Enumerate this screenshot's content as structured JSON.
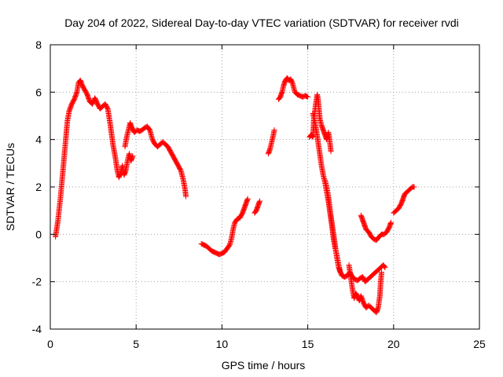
{
  "chart_data": {
    "type": "scatter",
    "title": "Day 204 of 2022, Sidereal Day-to-day VTEC variation (SDTVAR) for receiver rvdi",
    "xlabel": "GPS time / hours",
    "ylabel": "SDTVAR / TECUs",
    "xlim": [
      0,
      25
    ],
    "ylim": [
      -4,
      8
    ],
    "xticks": [
      "0",
      "5",
      "10",
      "15",
      "20",
      "25"
    ],
    "yticks": [
      "-4",
      "-2",
      "0",
      "2",
      "4",
      "6",
      "8"
    ],
    "grid": true,
    "marker": "+",
    "series": [
      {
        "name": "SDTVAR",
        "color": "#ff0000",
        "segments": [
          [
            [
              0.3,
              -0.1
            ],
            [
              0.45,
              0.6
            ],
            [
              0.6,
              1.6
            ],
            [
              0.75,
              2.8
            ],
            [
              0.9,
              4.0
            ],
            [
              1.0,
              4.8
            ],
            [
              1.1,
              5.2
            ],
            [
              1.25,
              5.5
            ],
            [
              1.4,
              5.7
            ],
            [
              1.55,
              6.0
            ],
            [
              1.65,
              6.4
            ],
            [
              1.75,
              6.5
            ],
            [
              1.85,
              6.3
            ],
            [
              2.0,
              6.1
            ],
            [
              2.15,
              5.9
            ],
            [
              2.3,
              5.6
            ],
            [
              2.45,
              5.5
            ],
            [
              2.6,
              5.75
            ],
            [
              2.75,
              5.5
            ],
            [
              2.9,
              5.3
            ],
            [
              3.05,
              5.4
            ],
            [
              3.2,
              5.5
            ],
            [
              3.35,
              5.3
            ],
            [
              3.5,
              4.6
            ],
            [
              3.65,
              3.8
            ],
            [
              3.8,
              3.2
            ],
            [
              3.9,
              2.7
            ],
            [
              4.0,
              2.4
            ],
            [
              4.1,
              2.6
            ],
            [
              4.2,
              2.9
            ],
            [
              4.3,
              2.5
            ],
            [
              4.4,
              2.7
            ],
            [
              4.5,
              3.1
            ],
            [
              4.6,
              3.4
            ],
            [
              4.7,
              3.1
            ],
            [
              4.8,
              3.3
            ]
          ],
          [
            [
              4.35,
              3.7
            ],
            [
              4.45,
              4.1
            ],
            [
              4.55,
              4.4
            ],
            [
              4.65,
              4.7
            ],
            [
              4.75,
              4.5
            ],
            [
              4.9,
              4.3
            ],
            [
              5.05,
              4.4
            ],
            [
              5.2,
              4.35
            ],
            [
              5.35,
              4.4
            ],
            [
              5.5,
              4.5
            ],
            [
              5.65,
              4.55
            ],
            [
              5.8,
              4.4
            ],
            [
              5.95,
              4.0
            ],
            [
              6.1,
              3.8
            ],
            [
              6.25,
              3.7
            ],
            [
              6.4,
              3.8
            ],
            [
              6.55,
              3.9
            ],
            [
              6.7,
              3.8
            ],
            [
              6.85,
              3.7
            ],
            [
              7.0,
              3.5
            ],
            [
              7.15,
              3.3
            ],
            [
              7.3,
              3.1
            ],
            [
              7.45,
              2.9
            ],
            [
              7.6,
              2.7
            ],
            [
              7.75,
              2.3
            ],
            [
              7.85,
              1.9
            ],
            [
              7.9,
              1.6
            ]
          ],
          [
            [
              8.8,
              -0.4
            ],
            [
              8.95,
              -0.45
            ],
            [
              9.1,
              -0.5
            ],
            [
              9.25,
              -0.6
            ],
            [
              9.4,
              -0.7
            ],
            [
              9.55,
              -0.75
            ],
            [
              9.7,
              -0.8
            ],
            [
              9.85,
              -0.85
            ],
            [
              10.0,
              -0.8
            ],
            [
              10.15,
              -0.75
            ],
            [
              10.3,
              -0.6
            ],
            [
              10.45,
              -0.45
            ],
            [
              10.55,
              -0.2
            ],
            [
              10.65,
              0.2
            ],
            [
              10.75,
              0.5
            ],
            [
              10.9,
              0.65
            ],
            [
              11.05,
              0.7
            ],
            [
              11.2,
              0.9
            ],
            [
              11.3,
              1.1
            ],
            [
              11.4,
              1.3
            ],
            [
              11.5,
              1.5
            ]
          ],
          [
            [
              11.9,
              0.9
            ],
            [
              12.0,
              1.0
            ],
            [
              12.1,
              1.2
            ],
            [
              12.2,
              1.4
            ]
          ],
          [
            [
              12.7,
              3.4
            ],
            [
              12.8,
              3.6
            ],
            [
              12.9,
              3.9
            ],
            [
              13.0,
              4.2
            ],
            [
              13.05,
              4.4
            ]
          ],
          [
            [
              13.3,
              5.7
            ],
            [
              13.4,
              5.8
            ],
            [
              13.5,
              6.0
            ],
            [
              13.6,
              6.3
            ],
            [
              13.7,
              6.5
            ],
            [
              13.8,
              6.6
            ],
            [
              13.9,
              6.5
            ],
            [
              14.0,
              6.55
            ],
            [
              14.1,
              6.4
            ],
            [
              14.25,
              6.0
            ],
            [
              14.4,
              5.9
            ],
            [
              14.55,
              5.85
            ],
            [
              14.7,
              5.8
            ],
            [
              14.85,
              5.85
            ],
            [
              15.0,
              5.8
            ]
          ],
          [
            [
              15.1,
              4.1
            ],
            [
              15.2,
              4.2
            ],
            [
              15.3,
              4.1
            ],
            [
              15.35,
              4.8
            ],
            [
              15.45,
              5.4
            ],
            [
              15.55,
              5.9
            ],
            [
              15.6,
              5.7
            ],
            [
              15.65,
              5.3
            ],
            [
              15.7,
              4.9
            ],
            [
              15.8,
              4.6
            ],
            [
              15.9,
              4.4
            ],
            [
              16.0,
              4.2
            ],
            [
              16.1,
              4.0
            ],
            [
              16.2,
              4.3
            ],
            [
              16.25,
              4.1
            ],
            [
              16.3,
              3.8
            ],
            [
              16.35,
              3.5
            ]
          ],
          [
            [
              15.3,
              5.1
            ],
            [
              15.4,
              4.8
            ],
            [
              15.5,
              4.4
            ],
            [
              15.6,
              3.9
            ],
            [
              15.7,
              3.4
            ],
            [
              15.8,
              2.9
            ],
            [
              15.9,
              2.5
            ],
            [
              16.0,
              2.2
            ],
            [
              16.1,
              1.8
            ],
            [
              16.2,
              1.4
            ],
            [
              16.3,
              0.9
            ],
            [
              16.4,
              0.4
            ],
            [
              16.5,
              -0.2
            ],
            [
              16.6,
              -0.6
            ],
            [
              16.7,
              -0.9
            ],
            [
              16.8,
              -1.3
            ],
            [
              16.9,
              -1.6
            ],
            [
              17.0,
              -1.75
            ],
            [
              17.15,
              -1.8
            ],
            [
              17.3,
              -1.75
            ],
            [
              17.45,
              -1.6
            ],
            [
              17.6,
              -1.8
            ],
            [
              17.75,
              -1.9
            ],
            [
              17.9,
              -1.95
            ],
            [
              18.05,
              -1.85
            ],
            [
              18.2,
              -1.8
            ],
            [
              18.35,
              -2.0
            ],
            [
              18.5,
              -1.9
            ],
            [
              18.65,
              -1.8
            ],
            [
              18.8,
              -1.7
            ],
            [
              18.95,
              -1.6
            ],
            [
              19.1,
              -1.5
            ],
            [
              19.25,
              -1.4
            ],
            [
              19.4,
              -1.3
            ],
            [
              19.5,
              -1.4
            ]
          ],
          [
            [
              16.0,
              2.3
            ],
            [
              16.1,
              2.0
            ],
            [
              16.2,
              1.6
            ],
            [
              16.3,
              1.0
            ],
            [
              16.4,
              0.5
            ],
            [
              16.5,
              0.0
            ],
            [
              16.6,
              -0.5
            ],
            [
              16.7,
              -1.0
            ],
            [
              16.8,
              -1.4
            ],
            [
              16.9,
              -1.6
            ]
          ],
          [
            [
              17.4,
              -1.3
            ],
            [
              17.5,
              -1.8
            ],
            [
              17.6,
              -2.3
            ],
            [
              17.7,
              -2.7
            ],
            [
              17.8,
              -2.5
            ],
            [
              17.9,
              -2.6
            ],
            [
              18.0,
              -2.8
            ],
            [
              18.1,
              -2.6
            ],
            [
              18.25,
              -2.9
            ],
            [
              18.4,
              -3.1
            ],
            [
              18.55,
              -3.0
            ],
            [
              18.7,
              -3.1
            ],
            [
              18.85,
              -3.2
            ],
            [
              19.0,
              -3.3
            ],
            [
              19.1,
              -3.1
            ],
            [
              19.2,
              -2.6
            ],
            [
              19.25,
              -2.0
            ],
            [
              19.3,
              -1.6
            ]
          ],
          [
            [
              18.1,
              0.8
            ],
            [
              18.2,
              0.6
            ],
            [
              18.3,
              0.4
            ],
            [
              18.4,
              0.2
            ],
            [
              18.55,
              0.1
            ],
            [
              18.7,
              -0.1
            ],
            [
              18.85,
              -0.2
            ],
            [
              19.0,
              -0.25
            ],
            [
              19.15,
              -0.1
            ],
            [
              19.3,
              0.0
            ],
            [
              19.45,
              0.0
            ],
            [
              19.6,
              0.1
            ],
            [
              19.75,
              0.3
            ],
            [
              19.85,
              0.5
            ]
          ],
          [
            [
              20.0,
              0.9
            ],
            [
              20.15,
              1.0
            ],
            [
              20.3,
              1.1
            ],
            [
              20.45,
              1.3
            ],
            [
              20.55,
              1.5
            ],
            [
              20.65,
              1.7
            ],
            [
              20.8,
              1.8
            ],
            [
              20.95,
              1.9
            ],
            [
              21.1,
              2.0
            ],
            [
              21.2,
              2.0
            ]
          ]
        ]
      }
    ]
  }
}
